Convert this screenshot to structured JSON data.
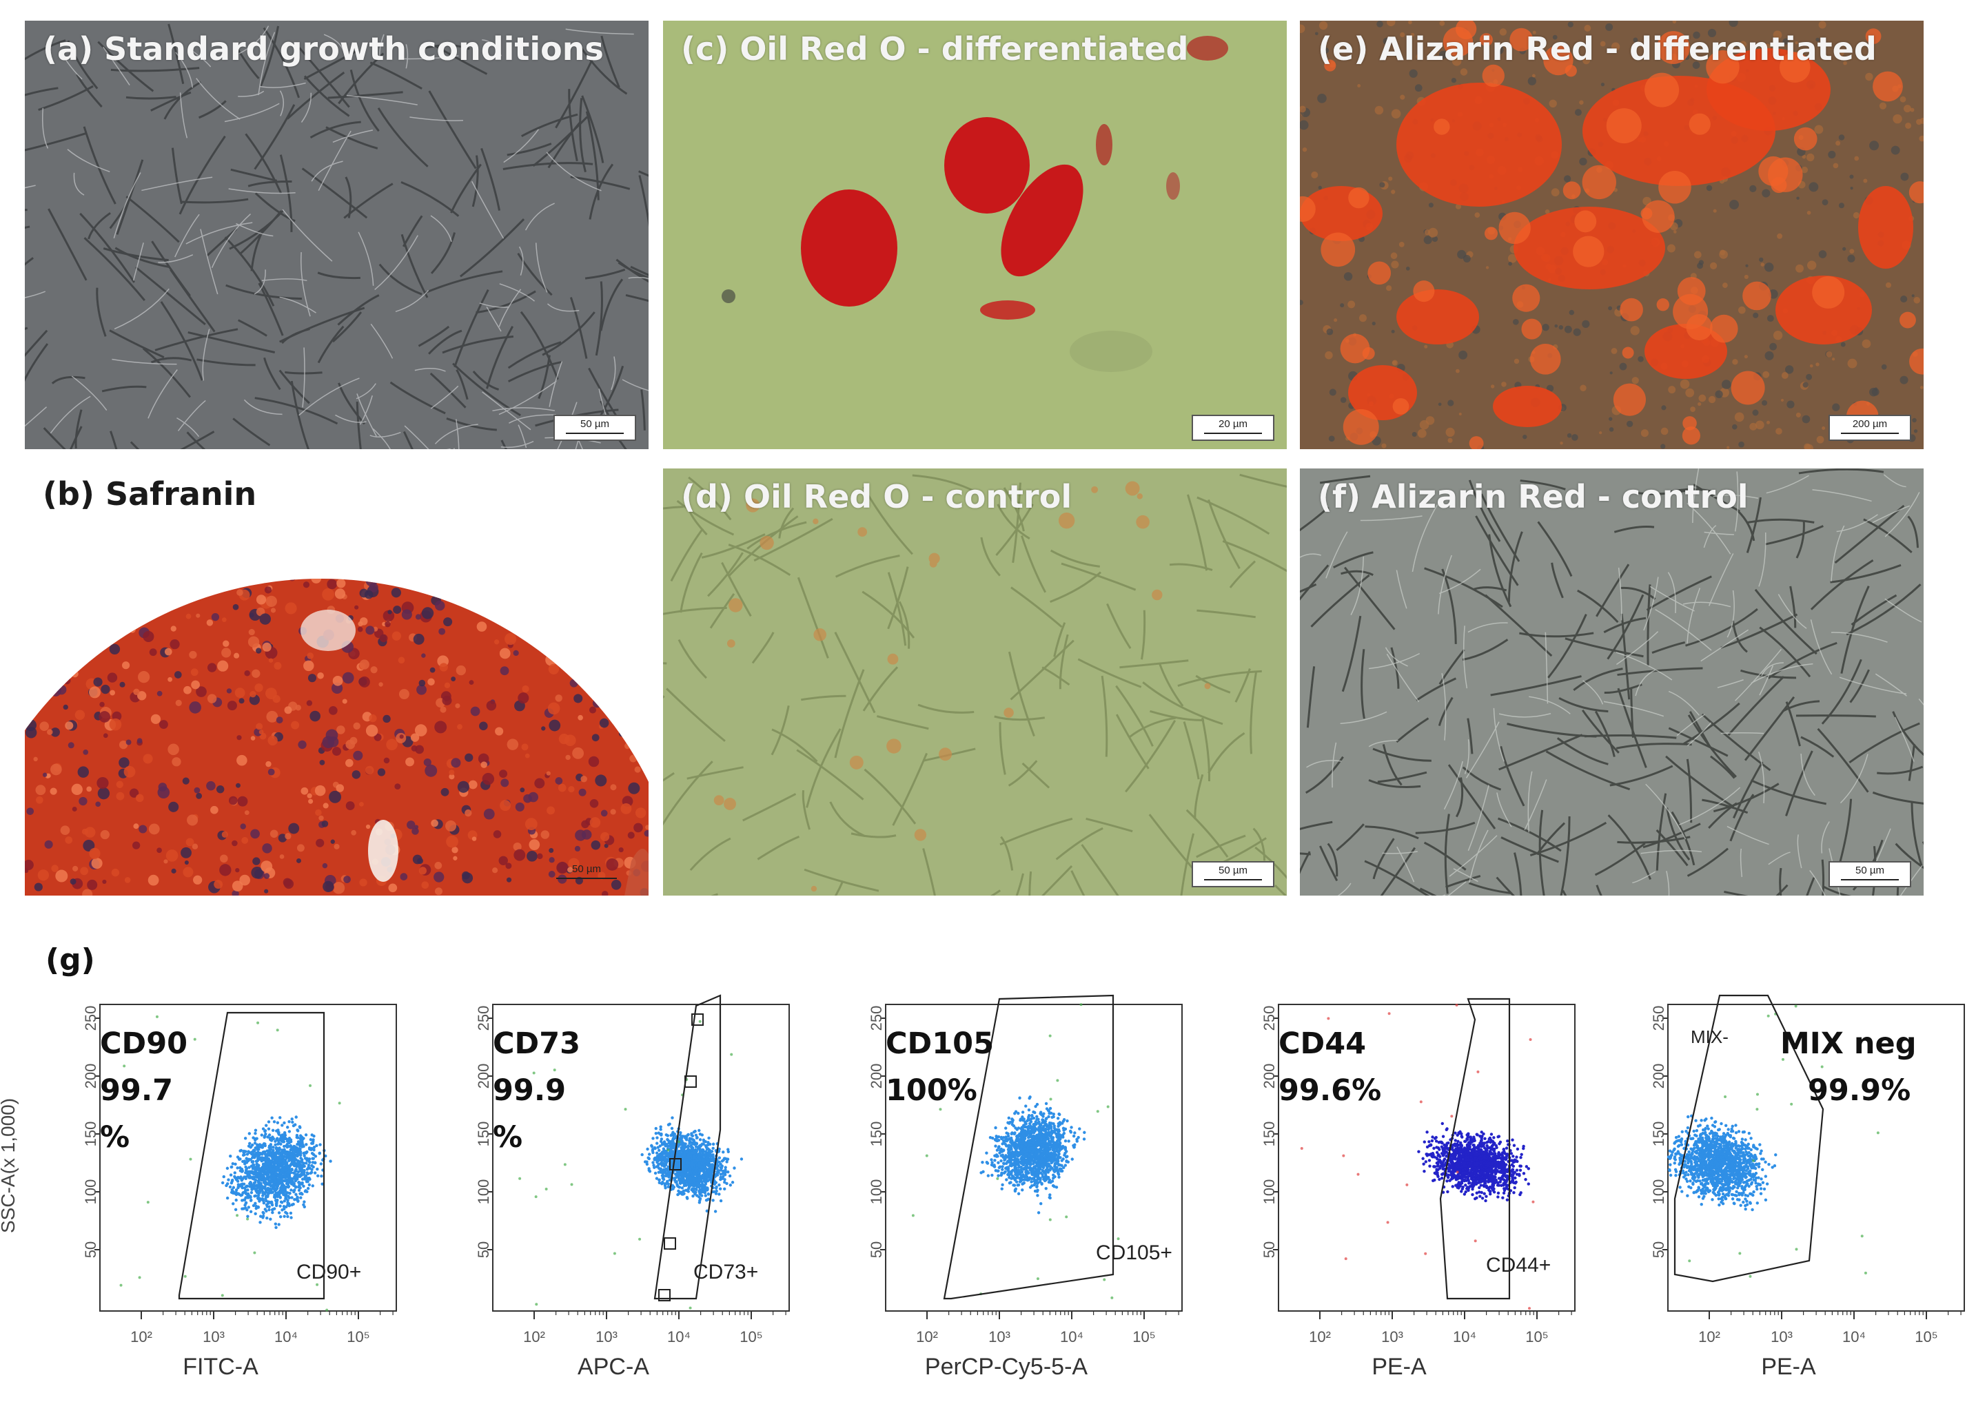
{
  "panels": {
    "a": {
      "label": "(a) Standard growth conditions",
      "scale": "50 µm"
    },
    "b": {
      "label": "(b) Safranin",
      "scale": "50 µm"
    },
    "c": {
      "label": "(c) Oil Red O - differentiated",
      "scale": "20 µm"
    },
    "d": {
      "label": "(d) Oil Red O - control",
      "scale": "50 µm"
    },
    "e": {
      "label": "(e) Alizarin Red - differentiated",
      "scale": "200 µm"
    },
    "f": {
      "label": "(f) Alizarin Red - control",
      "scale": "50 µm"
    }
  },
  "g": {
    "label": "(g)",
    "y_axis_label": "SSC-A(x 1,000)",
    "y_ticks": [
      "250",
      "200",
      "150",
      "100",
      "50"
    ],
    "x_ticks": [
      "10²",
      "10³",
      "10⁴",
      "10⁵"
    ],
    "plots": [
      {
        "marker": "CD90",
        "line1": "99.7",
        "line2": "%",
        "gate": "CD90+",
        "xlabel": "FITC-A"
      },
      {
        "marker": "CD73",
        "line1": "99.9",
        "line2": "%",
        "gate": "CD73+",
        "xlabel": "APC-A"
      },
      {
        "marker": "CD105",
        "line1": "100%",
        "line2": "",
        "gate": "CD105+",
        "xlabel": "PerCP-Cy5-5-A"
      },
      {
        "marker": "CD44",
        "line1": "99.6%",
        "line2": "",
        "gate": "CD44+",
        "xlabel": "PE-A"
      },
      {
        "marker": "MIX neg",
        "line1": "99.9%",
        "line2": "",
        "gate": "MIX-",
        "xlabel": "PE-A"
      }
    ]
  },
  "colors": {
    "phase_gray": "#6e7073",
    "oil_green": "#a9bb7a",
    "oil_red": "#c8181a",
    "alizarin_orange": "#e8521a",
    "safranin_red": "#c83a1e",
    "control_green": "#a4b47c",
    "control_gray": "#8a8f8a",
    "dot_blue": "#2f8fe6",
    "dot_darkblue": "#2323c8",
    "dot_green": "#4caf50",
    "dot_red": "#e04040"
  }
}
